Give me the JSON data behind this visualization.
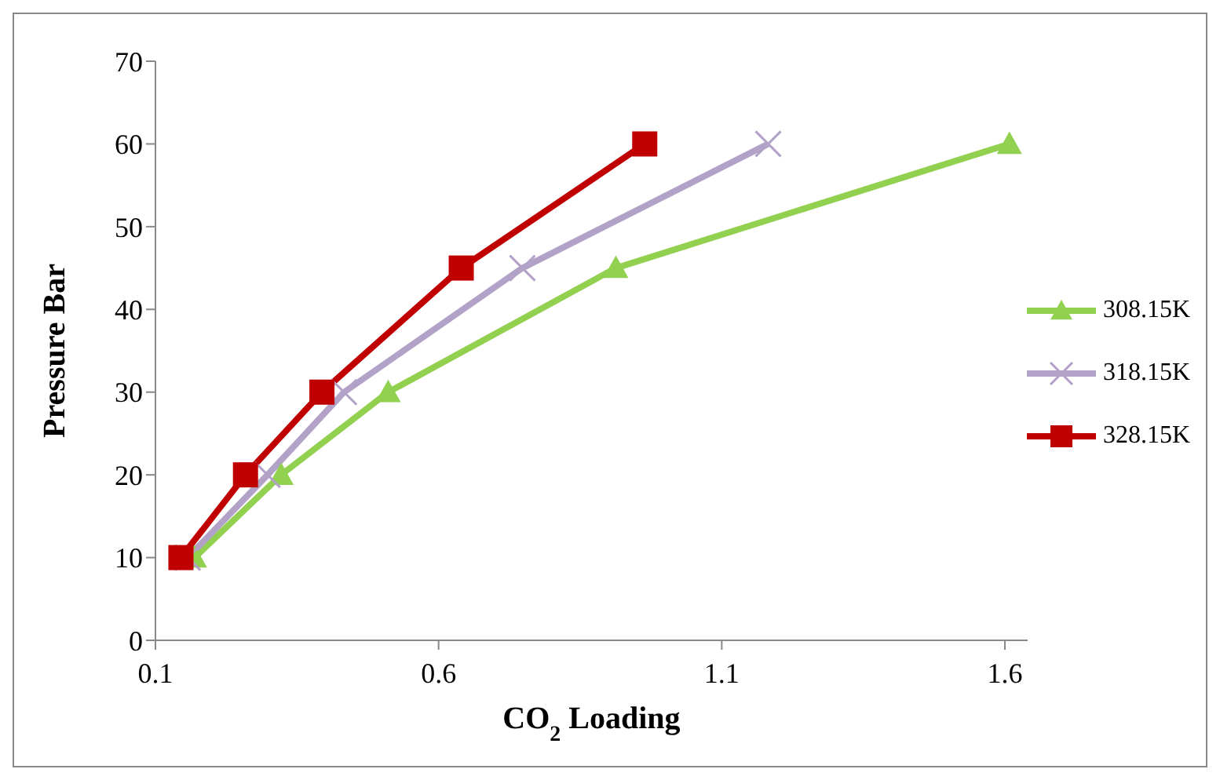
{
  "chart_data": {
    "type": "line",
    "xlabel": "CO$_{2}$ Loading",
    "ylabel": "Pressure Bar",
    "xlim": [
      0.1,
      1.64
    ],
    "xticks": [
      0.1,
      0.6,
      1.1,
      1.6
    ],
    "ylim": [
      0,
      70
    ],
    "yticks": [
      0,
      10,
      20,
      30,
      40,
      50,
      60,
      70
    ],
    "grid": false,
    "legend": "right",
    "series": [
      {
        "name": "308.15K",
        "color": "#92d050",
        "marker": "triangle",
        "x": [
          0.169,
          0.322,
          0.511,
          0.913,
          1.608
        ],
        "values": [
          10,
          20,
          30,
          45,
          60
        ]
      },
      {
        "name": "318.15K",
        "color": "#b3a2c7",
        "marker": "cross",
        "x": [
          0.157,
          0.298,
          0.433,
          0.748,
          1.182
        ],
        "values": [
          10,
          20,
          30,
          45,
          60
        ]
      },
      {
        "name": "328.15K",
        "color": "#c00000",
        "marker": "square",
        "x": [
          0.145,
          0.259,
          0.394,
          0.64,
          0.964
        ],
        "values": [
          10,
          20,
          30,
          45,
          60
        ]
      }
    ]
  }
}
